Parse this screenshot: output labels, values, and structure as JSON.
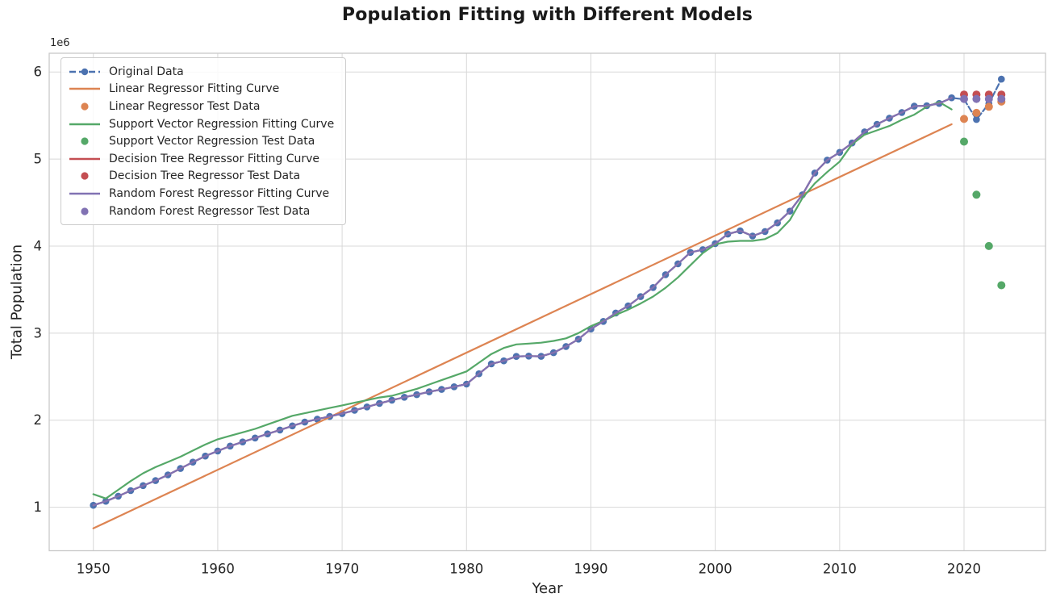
{
  "figure": {
    "background": "#ffffff",
    "grid_color": "#d8d8d8",
    "spine_color": "#c8c8c8",
    "text_color": "#262626"
  },
  "colors": {
    "original_blue": "#4C72B0",
    "linear_orange": "#DD8452",
    "svr_green": "#55A868",
    "tree_red": "#C44E52",
    "forest_purple": "#8172B3"
  },
  "legend": {
    "position": "upper left",
    "entries": [
      {
        "label": "Original Data",
        "color": "#4C72B0",
        "swatch": "dashed-line-dot"
      },
      {
        "label": "Linear Regressor Fitting Curve",
        "color": "#DD8452",
        "swatch": "line"
      },
      {
        "label": "Linear Regressor Test Data",
        "color": "#DD8452",
        "swatch": "dot"
      },
      {
        "label": "Support Vector Regression Fitting Curve",
        "color": "#55A868",
        "swatch": "line"
      },
      {
        "label": "Support Vector Regression Test Data",
        "color": "#55A868",
        "swatch": "dot"
      },
      {
        "label": "Decision Tree Regressor Fitting Curve",
        "color": "#C44E52",
        "swatch": "line"
      },
      {
        "label": "Decision Tree Regressor Test Data",
        "color": "#C44E52",
        "swatch": "dot"
      },
      {
        "label": "Random Forest Regressor Fitting Curve",
        "color": "#8172B3",
        "swatch": "line"
      },
      {
        "label": "Random Forest Regressor Test Data",
        "color": "#8172B3",
        "swatch": "dot"
      }
    ]
  },
  "chart_data": {
    "type": "line",
    "title": "Population Fitting with Different Models",
    "xlabel": "Year",
    "ylabel": "Total Population",
    "y_offset_text": "1e6",
    "unit_note": "y values in units of 1e6 (millions), as shown by the axis offset label",
    "xlim": [
      1946.45,
      2026.55
    ],
    "ylim": [
      0.5,
      6.215
    ],
    "x_ticks": [
      1950,
      1960,
      1970,
      1980,
      1990,
      2000,
      2010,
      2020
    ],
    "y_ticks": [
      1,
      2,
      3,
      4,
      5,
      6
    ],
    "grid": true,
    "legend_position": "upper left",
    "train_range": [
      1950,
      2019
    ],
    "test_range": [
      2020,
      2023
    ],
    "series": [
      {
        "name": "Original Data",
        "color": "#4C72B0",
        "line": "dashed",
        "marker": true,
        "marker_r": 4.3,
        "x": [
          1950,
          1951,
          1952,
          1953,
          1954,
          1955,
          1956,
          1957,
          1958,
          1959,
          1960,
          1961,
          1962,
          1963,
          1964,
          1965,
          1966,
          1967,
          1968,
          1969,
          1970,
          1971,
          1972,
          1973,
          1974,
          1975,
          1976,
          1977,
          1978,
          1979,
          1980,
          1981,
          1982,
          1983,
          1984,
          1985,
          1986,
          1987,
          1988,
          1989,
          1990,
          1991,
          1992,
          1993,
          1994,
          1995,
          1996,
          1997,
          1998,
          1999,
          2000,
          2001,
          2002,
          2003,
          2004,
          2005,
          2006,
          2007,
          2008,
          2009,
          2010,
          2011,
          2012,
          2013,
          2014,
          2015,
          2016,
          2017,
          2018,
          2019,
          2020,
          2021,
          2022,
          2023
        ],
        "y": [
          1.022,
          1.068,
          1.127,
          1.191,
          1.248,
          1.306,
          1.371,
          1.445,
          1.518,
          1.587,
          1.646,
          1.702,
          1.75,
          1.795,
          1.842,
          1.887,
          1.934,
          1.978,
          2.012,
          2.043,
          2.075,
          2.113,
          2.152,
          2.193,
          2.23,
          2.263,
          2.293,
          2.325,
          2.353,
          2.384,
          2.414,
          2.533,
          2.647,
          2.681,
          2.732,
          2.736,
          2.733,
          2.775,
          2.846,
          2.931,
          3.047,
          3.135,
          3.231,
          3.313,
          3.419,
          3.524,
          3.671,
          3.796,
          3.927,
          3.959,
          4.028,
          4.138,
          4.176,
          4.115,
          4.167,
          4.266,
          4.401,
          4.589,
          4.839,
          4.988,
          5.077,
          5.184,
          5.312,
          5.399,
          5.47,
          5.535,
          5.607,
          5.612,
          5.638,
          5.703,
          5.686,
          5.454,
          5.637,
          5.917
        ]
      },
      {
        "name": "Linear Regressor Fitting Curve",
        "color": "#DD8452",
        "line": "solid",
        "marker": false,
        "x": [
          1950,
          2019
        ],
        "y": [
          0.757,
          5.399
        ]
      },
      {
        "name": "Linear Regressor Test Data",
        "color": "#DD8452",
        "line": "none",
        "marker": true,
        "marker_r": 5,
        "x": [
          2020,
          2021,
          2022,
          2023
        ],
        "y": [
          5.46,
          5.53,
          5.6,
          5.66
        ]
      },
      {
        "name": "Support Vector Regression Fitting Curve",
        "color": "#55A868",
        "line": "solid",
        "marker": false,
        "x": [
          1950,
          1951,
          1952,
          1953,
          1954,
          1955,
          1956,
          1957,
          1958,
          1959,
          1960,
          1961,
          1962,
          1963,
          1964,
          1965,
          1966,
          1967,
          1968,
          1969,
          1970,
          1971,
          1972,
          1973,
          1974,
          1975,
          1976,
          1977,
          1978,
          1979,
          1980,
          1981,
          1982,
          1983,
          1984,
          1985,
          1986,
          1987,
          1988,
          1989,
          1990,
          1991,
          1992,
          1993,
          1994,
          1995,
          1996,
          1997,
          1998,
          1999,
          2000,
          2001,
          2002,
          2003,
          2004,
          2005,
          2006,
          2007,
          2008,
          2009,
          2010,
          2011,
          2012,
          2013,
          2014,
          2015,
          2016,
          2017,
          2018,
          2019
        ],
        "y": [
          1.15,
          1.1,
          1.2,
          1.3,
          1.39,
          1.46,
          1.52,
          1.58,
          1.65,
          1.72,
          1.78,
          1.82,
          1.86,
          1.9,
          1.95,
          2.0,
          2.05,
          2.08,
          2.11,
          2.14,
          2.17,
          2.2,
          2.23,
          2.26,
          2.28,
          2.32,
          2.36,
          2.41,
          2.46,
          2.51,
          2.56,
          2.66,
          2.76,
          2.83,
          2.87,
          2.88,
          2.89,
          2.91,
          2.94,
          3.0,
          3.08,
          3.14,
          3.21,
          3.27,
          3.34,
          3.42,
          3.52,
          3.64,
          3.78,
          3.92,
          4.02,
          4.05,
          4.06,
          4.06,
          4.08,
          4.15,
          4.3,
          4.55,
          4.72,
          4.85,
          4.97,
          5.17,
          5.28,
          5.33,
          5.38,
          5.45,
          5.51,
          5.6,
          5.655,
          5.57
        ]
      },
      {
        "name": "Support Vector Regression Test Data",
        "color": "#55A868",
        "line": "none",
        "marker": true,
        "marker_r": 5,
        "x": [
          2020,
          2021,
          2022,
          2023
        ],
        "y": [
          5.2,
          4.59,
          4.0,
          3.55
        ]
      },
      {
        "name": "Decision Tree Regressor Fitting Curve",
        "color": "#C44E52",
        "line": "solid",
        "marker": false,
        "note": "overlaps the original training data 1950-2019",
        "x": [
          1950,
          1951,
          1952,
          1953,
          1954,
          1955,
          1956,
          1957,
          1958,
          1959,
          1960,
          1961,
          1962,
          1963,
          1964,
          1965,
          1966,
          1967,
          1968,
          1969,
          1970,
          1971,
          1972,
          1973,
          1974,
          1975,
          1976,
          1977,
          1978,
          1979,
          1980,
          1981,
          1982,
          1983,
          1984,
          1985,
          1986,
          1987,
          1988,
          1989,
          1990,
          1991,
          1992,
          1993,
          1994,
          1995,
          1996,
          1997,
          1998,
          1999,
          2000,
          2001,
          2002,
          2003,
          2004,
          2005,
          2006,
          2007,
          2008,
          2009,
          2010,
          2011,
          2012,
          2013,
          2014,
          2015,
          2016,
          2017,
          2018,
          2019
        ],
        "y": [
          1.022,
          1.068,
          1.127,
          1.191,
          1.248,
          1.306,
          1.371,
          1.445,
          1.518,
          1.587,
          1.646,
          1.702,
          1.75,
          1.795,
          1.842,
          1.887,
          1.934,
          1.978,
          2.012,
          2.043,
          2.075,
          2.113,
          2.152,
          2.193,
          2.23,
          2.263,
          2.293,
          2.325,
          2.353,
          2.384,
          2.414,
          2.533,
          2.647,
          2.681,
          2.732,
          2.736,
          2.733,
          2.775,
          2.846,
          2.931,
          3.047,
          3.135,
          3.231,
          3.313,
          3.419,
          3.524,
          3.671,
          3.796,
          3.927,
          3.959,
          4.028,
          4.138,
          4.176,
          4.115,
          4.167,
          4.266,
          4.401,
          4.589,
          4.839,
          4.988,
          5.077,
          5.184,
          5.312,
          5.399,
          5.47,
          5.535,
          5.607,
          5.612,
          5.638,
          5.703
        ]
      },
      {
        "name": "Decision Tree Regressor Test Data",
        "color": "#C44E52",
        "line": "none",
        "marker": true,
        "marker_r": 5,
        "x": [
          2020,
          2021,
          2022,
          2023
        ],
        "y": [
          5.74,
          5.74,
          5.74,
          5.74
        ]
      },
      {
        "name": "Random Forest Regressor Fitting Curve",
        "color": "#8172B3",
        "line": "solid",
        "marker": false,
        "note": "overlaps the original training data 1950-2019",
        "x": [
          1950,
          1951,
          1952,
          1953,
          1954,
          1955,
          1956,
          1957,
          1958,
          1959,
          1960,
          1961,
          1962,
          1963,
          1964,
          1965,
          1966,
          1967,
          1968,
          1969,
          1970,
          1971,
          1972,
          1973,
          1974,
          1975,
          1976,
          1977,
          1978,
          1979,
          1980,
          1981,
          1982,
          1983,
          1984,
          1985,
          1986,
          1987,
          1988,
          1989,
          1990,
          1991,
          1992,
          1993,
          1994,
          1995,
          1996,
          1997,
          1998,
          1999,
          2000,
          2001,
          2002,
          2003,
          2004,
          2005,
          2006,
          2007,
          2008,
          2009,
          2010,
          2011,
          2012,
          2013,
          2014,
          2015,
          2016,
          2017,
          2018,
          2019
        ],
        "y": [
          1.022,
          1.068,
          1.127,
          1.191,
          1.248,
          1.306,
          1.371,
          1.445,
          1.518,
          1.587,
          1.646,
          1.702,
          1.75,
          1.795,
          1.842,
          1.887,
          1.934,
          1.978,
          2.012,
          2.043,
          2.075,
          2.113,
          2.152,
          2.193,
          2.23,
          2.263,
          2.293,
          2.325,
          2.353,
          2.384,
          2.414,
          2.533,
          2.647,
          2.681,
          2.732,
          2.736,
          2.733,
          2.775,
          2.846,
          2.931,
          3.047,
          3.135,
          3.231,
          3.313,
          3.419,
          3.524,
          3.671,
          3.796,
          3.927,
          3.959,
          4.028,
          4.138,
          4.176,
          4.115,
          4.167,
          4.266,
          4.401,
          4.589,
          4.839,
          4.988,
          5.077,
          5.184,
          5.312,
          5.399,
          5.47,
          5.535,
          5.607,
          5.612,
          5.638,
          5.703
        ]
      },
      {
        "name": "Random Forest Regressor Test Data",
        "color": "#8172B3",
        "line": "none",
        "marker": true,
        "marker_r": 5,
        "x": [
          2020,
          2021,
          2022,
          2023
        ],
        "y": [
          5.69,
          5.69,
          5.69,
          5.69
        ]
      }
    ]
  }
}
